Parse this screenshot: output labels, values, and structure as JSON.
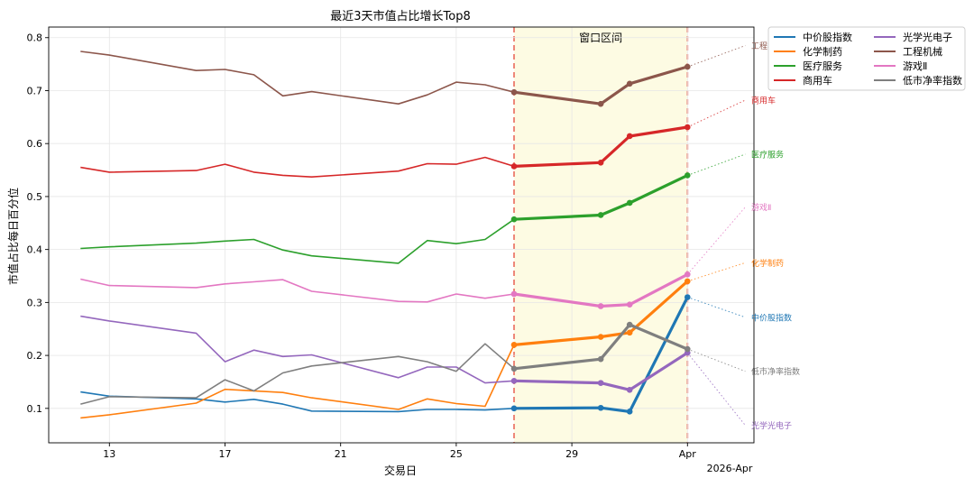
{
  "chart_data": {
    "type": "line",
    "title": "最近3天市值占比增长Top8",
    "xlabel": "交易日",
    "ylabel": "市值占比每日百分位",
    "ylim": [
      0.035,
      0.82
    ],
    "x_ticks": [
      "13",
      "17",
      "21",
      "25",
      "29",
      "Apr"
    ],
    "x_tick_values": [
      13,
      17,
      21,
      25,
      29,
      33
    ],
    "x_offset_label": "2026-Apr",
    "xlim": [
      10.9,
      35.3
    ],
    "y_ticks": [
      "0.1",
      "0.2",
      "0.3",
      "0.4",
      "0.5",
      "0.6",
      "0.7",
      "0.8"
    ],
    "grid": true,
    "window": {
      "label": "窗口区间",
      "start": 27,
      "end": 33,
      "fill": "#fdfbe3",
      "line_color": "#ec7a6c"
    },
    "legend_position": "outside-right",
    "series": [
      {
        "name": "中价股指数",
        "color": "#1f77b4",
        "x": [
          12,
          13,
          16,
          17,
          18,
          19,
          20,
          23,
          24,
          25,
          26,
          27,
          30,
          31,
          33
        ],
        "y": [
          0.131,
          0.123,
          0.118,
          0.112,
          0.117,
          0.108,
          0.095,
          0.094,
          0.098,
          0.098,
          0.097,
          0.1,
          0.101,
          0.094,
          0.31
        ],
        "proj": 0.272
      },
      {
        "name": "化学制药",
        "color": "#ff7f0e",
        "x": [
          12,
          13,
          16,
          17,
          18,
          19,
          20,
          23,
          24,
          25,
          26,
          27,
          30,
          31,
          33
        ],
        "y": [
          0.082,
          0.088,
          0.11,
          0.136,
          0.133,
          0.13,
          0.12,
          0.098,
          0.118,
          0.109,
          0.104,
          0.22,
          0.235,
          0.243,
          0.34
        ],
        "proj": 0.375
      },
      {
        "name": "医疗服务",
        "color": "#2ca02c",
        "x": [
          12,
          13,
          16,
          17,
          18,
          19,
          20,
          23,
          24,
          25,
          26,
          27,
          30,
          31,
          33
        ],
        "y": [
          0.402,
          0.405,
          0.412,
          0.416,
          0.419,
          0.399,
          0.388,
          0.374,
          0.417,
          0.411,
          0.419,
          0.457,
          0.465,
          0.488,
          0.54
        ],
        "proj": 0.58
      },
      {
        "name": "商用车",
        "color": "#d62728",
        "x": [
          12,
          13,
          16,
          17,
          18,
          19,
          20,
          23,
          24,
          25,
          26,
          27,
          30,
          31,
          33
        ],
        "y": [
          0.555,
          0.546,
          0.549,
          0.561,
          0.546,
          0.54,
          0.537,
          0.548,
          0.562,
          0.561,
          0.574,
          0.557,
          0.564,
          0.614,
          0.631
        ],
        "proj": 0.682
      },
      {
        "name": "光学光电子",
        "color": "#9467bd",
        "x": [
          12,
          13,
          16,
          17,
          18,
          19,
          20,
          23,
          24,
          25,
          26,
          27,
          30,
          31,
          33
        ],
        "y": [
          0.274,
          0.265,
          0.242,
          0.188,
          0.21,
          0.198,
          0.201,
          0.158,
          0.178,
          0.178,
          0.148,
          0.152,
          0.148,
          0.135,
          0.205
        ],
        "proj": 0.068
      },
      {
        "name": "工程机械",
        "color": "#8c564b",
        "x": [
          12,
          13,
          16,
          17,
          18,
          19,
          20,
          23,
          24,
          25,
          26,
          27,
          30,
          31,
          33
        ],
        "y": [
          0.774,
          0.767,
          0.738,
          0.74,
          0.73,
          0.69,
          0.698,
          0.675,
          0.692,
          0.716,
          0.711,
          0.697,
          0.675,
          0.713,
          0.745
        ],
        "proj": 0.785
      },
      {
        "name": "游戏Ⅱ",
        "color": "#e377c2",
        "x": [
          12,
          13,
          16,
          17,
          18,
          19,
          20,
          23,
          24,
          25,
          26,
          27,
          30,
          31,
          33
        ],
        "y": [
          0.344,
          0.332,
          0.328,
          0.335,
          0.339,
          0.343,
          0.321,
          0.302,
          0.301,
          0.316,
          0.308,
          0.316,
          0.293,
          0.296,
          0.353
        ],
        "proj": 0.48
      },
      {
        "name": "低市净率指数",
        "color": "#7f7f7f",
        "x": [
          12,
          13,
          16,
          17,
          18,
          19,
          20,
          23,
          24,
          25,
          26,
          27,
          30,
          31,
          33
        ],
        "y": [
          0.108,
          0.122,
          0.12,
          0.154,
          0.133,
          0.167,
          0.18,
          0.198,
          0.188,
          0.17,
          0.222,
          0.175,
          0.193,
          0.258,
          0.212
        ],
        "proj": 0.17
      }
    ]
  }
}
